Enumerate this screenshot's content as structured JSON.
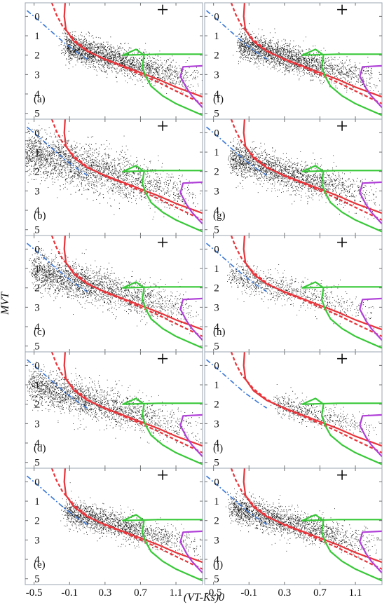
{
  "chart_data": {
    "type": "scatter",
    "layout": "2 columns x 5 rows of panels sharing axes",
    "xlabel": "(VT-Ks)0",
    "ylabel": "MVT",
    "xlim": [
      -0.6,
      1.4
    ],
    "ylim": [
      5.3,
      -0.7
    ],
    "y_inverted": true,
    "x_ticks": [
      -0.5,
      -0.1,
      0.3,
      0.7,
      1.1
    ],
    "x_tick_labels": [
      "-0.5",
      "-0.1",
      "0.3",
      "0.7",
      "1.1"
    ],
    "y_ticks": [
      0,
      1,
      2,
      3,
      4,
      5
    ],
    "y_tick_labels": [
      "0",
      "1",
      "2",
      "3",
      "4",
      "5"
    ],
    "grid": false,
    "colors": {
      "points": "#111111",
      "red_curves": "#e8343a",
      "blue_dashdot": "#3a78d8",
      "green_curve": "#37c837",
      "purple_curve": "#b040d8",
      "frame": "#9aa4b0"
    },
    "error_cross": {
      "x": 0.95,
      "y": -0.35
    },
    "curves": [
      {
        "id": "red-solid",
        "style": "solid",
        "color": "#e8343a",
        "x": [
          -0.15,
          -0.16,
          -0.14,
          -0.05,
          0.1,
          0.3,
          0.5,
          0.7,
          0.9,
          1.1,
          1.4
        ],
        "y": [
          -0.7,
          0.0,
          0.7,
          1.3,
          1.8,
          2.2,
          2.55,
          2.9,
          3.25,
          3.65,
          4.15
        ]
      },
      {
        "id": "red-dashed",
        "style": "dashed",
        "color": "#e8343a",
        "x": [
          -0.3,
          -0.25,
          -0.18,
          -0.05,
          0.1,
          0.3,
          0.5,
          0.7,
          0.9,
          1.1,
          1.4
        ],
        "y": [
          -0.7,
          -0.1,
          0.5,
          1.2,
          1.75,
          2.25,
          2.6,
          3.0,
          3.4,
          3.85,
          4.5
        ]
      },
      {
        "id": "blue-dashdot",
        "style": "dashdot",
        "color": "#3a78d8",
        "x": [
          -0.58,
          -0.45,
          -0.3,
          -0.15,
          0.0,
          0.1
        ],
        "y": [
          -0.3,
          0.2,
          0.8,
          1.4,
          1.9,
          2.2
        ]
      },
      {
        "id": "green-solid",
        "style": "solid",
        "color": "#37c837",
        "x": [
          1.4,
          0.9,
          0.5,
          0.65,
          0.74,
          0.72,
          0.76,
          0.82,
          0.95,
          1.1,
          1.25,
          1.4
        ],
        "y": [
          1.95,
          1.95,
          2.0,
          1.7,
          2.0,
          2.6,
          3.1,
          3.6,
          4.1,
          4.5,
          4.8,
          5.1
        ]
      },
      {
        "id": "purple-solid",
        "style": "solid",
        "color": "#b040d8",
        "x": [
          1.4,
          1.18,
          1.15,
          1.22,
          1.28,
          1.34,
          1.4
        ],
        "y": [
          2.55,
          2.6,
          3.1,
          3.7,
          4.1,
          4.4,
          4.7
        ]
      }
    ],
    "panels": [
      {
        "label": "(a)",
        "density": 0.9,
        "locus_upper": 0.55,
        "locus_lower": 0.75,
        "min_color": -0.15
      },
      {
        "label": "(b)",
        "density": 1.0,
        "locus_upper": 1.0,
        "locus_lower": 0.75,
        "min_color": -0.6
      },
      {
        "label": "(c)",
        "density": 0.9,
        "locus_upper": 0.8,
        "locus_lower": 0.75,
        "min_color": -0.5
      },
      {
        "label": "(d)",
        "density": 0.85,
        "locus_upper": 0.8,
        "locus_lower": 0.75,
        "min_color": -0.55
      },
      {
        "label": "(e)",
        "density": 0.7,
        "locus_upper": 0.55,
        "locus_lower": 0.6,
        "min_color": -0.15
      },
      {
        "label": "(f)",
        "density": 0.9,
        "locus_upper": 0.6,
        "locus_lower": 0.75,
        "min_color": -0.2
      },
      {
        "label": "(g)",
        "density": 0.85,
        "locus_upper": 0.7,
        "locus_lower": 0.7,
        "min_color": -0.3
      },
      {
        "label": "(h)",
        "density": 0.35,
        "locus_upper": 0.6,
        "locus_lower": 0.6,
        "min_color": -0.3
      },
      {
        "label": "(i)",
        "density": 0.22,
        "locus_upper": 0.45,
        "locus_lower": 0.5,
        "min_color": 0.2
      },
      {
        "label": "(j)",
        "density": 0.8,
        "locus_upper": 0.6,
        "locus_lower": 0.7,
        "min_color": -0.3
      }
    ]
  }
}
